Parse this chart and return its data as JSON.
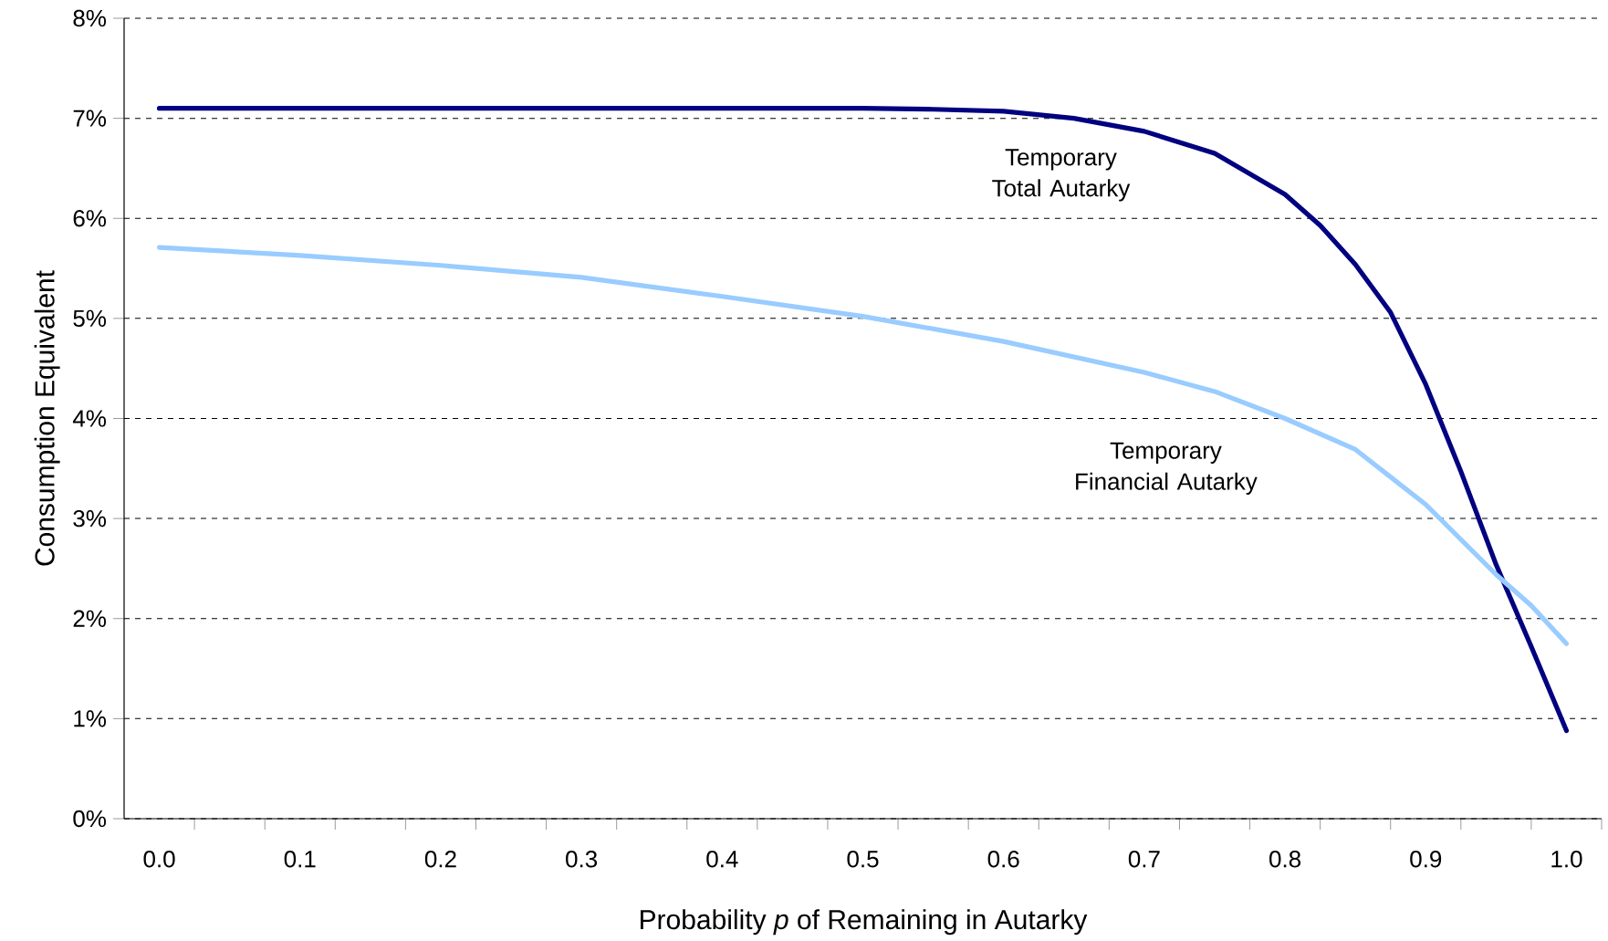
{
  "chart_data": {
    "type": "line",
    "xlabel": "Probability *p* of Remaining in Autarky",
    "ylabel": "Consumption Equivalent",
    "xlim": [
      -0.025,
      1.025
    ],
    "ylim": [
      0,
      8
    ],
    "xticks": [
      {
        "value": 0.0,
        "label": "0.0"
      },
      {
        "value": 0.1,
        "label": "0.1"
      },
      {
        "value": 0.2,
        "label": "0.2"
      },
      {
        "value": 0.3,
        "label": "0.3"
      },
      {
        "value": 0.4,
        "label": "0.4"
      },
      {
        "value": 0.5,
        "label": "0.5"
      },
      {
        "value": 0.6,
        "label": "0.6"
      },
      {
        "value": 0.7,
        "label": "0.7"
      },
      {
        "value": 0.8,
        "label": "0.8"
      },
      {
        "value": 0.9,
        "label": "0.9"
      },
      {
        "value": 1.0,
        "label": "1.0"
      },
      {
        "value": 0.025,
        "label": null
      },
      {
        "value": 0.075,
        "label": null
      },
      {
        "value": 0.125,
        "label": null
      },
      {
        "value": 0.175,
        "label": null
      },
      {
        "value": 0.225,
        "label": null
      },
      {
        "value": 0.275,
        "label": null
      },
      {
        "value": 0.325,
        "label": null
      },
      {
        "value": 0.375,
        "label": null
      },
      {
        "value": 0.425,
        "label": null
      },
      {
        "value": 0.475,
        "label": null
      },
      {
        "value": 0.525,
        "label": null
      },
      {
        "value": 0.575,
        "label": null
      },
      {
        "value": 0.625,
        "label": null
      },
      {
        "value": 0.675,
        "label": null
      },
      {
        "value": 0.725,
        "label": null
      },
      {
        "value": 0.775,
        "label": null
      },
      {
        "value": 0.825,
        "label": null
      },
      {
        "value": 0.875,
        "label": null
      },
      {
        "value": 0.925,
        "label": null
      },
      {
        "value": 0.975,
        "label": null
      },
      {
        "value": 1.025,
        "label": null
      }
    ],
    "yticks": [
      {
        "value": 0,
        "label": "0%"
      },
      {
        "value": 1,
        "label": "1%"
      },
      {
        "value": 2,
        "label": "2%"
      },
      {
        "value": 3,
        "label": "3%"
      },
      {
        "value": 4,
        "label": "4%"
      },
      {
        "value": 5,
        "label": "5%"
      },
      {
        "value": 6,
        "label": "6%"
      },
      {
        "value": 7,
        "label": "7%"
      },
      {
        "value": 8,
        "label": "8%"
      }
    ],
    "grid": "y",
    "line_style": "solid",
    "marker": "none",
    "series": [
      {
        "color": "#000080",
        "x": [
          0.0,
          0.1,
          0.2,
          0.3,
          0.4,
          0.5,
          0.55,
          0.6,
          0.65,
          0.7,
          0.75,
          0.8,
          0.825,
          0.85,
          0.875,
          0.9,
          0.925,
          0.95,
          0.975,
          1.0
        ],
        "values": [
          7.1,
          7.1,
          7.1,
          7.1,
          7.1,
          7.1,
          7.09,
          7.07,
          7.0,
          6.87,
          6.65,
          6.24,
          5.93,
          5.54,
          5.06,
          4.34,
          3.47,
          2.54,
          1.72,
          0.88
        ]
      },
      {
        "color": "#99ccff",
        "x": [
          0.0,
          0.1,
          0.2,
          0.3,
          0.4,
          0.5,
          0.6,
          0.7,
          0.75,
          0.8,
          0.85,
          0.9,
          0.95,
          0.975,
          1.0
        ],
        "values": [
          5.71,
          5.63,
          5.53,
          5.41,
          5.22,
          5.02,
          4.77,
          4.46,
          4.27,
          4.0,
          3.69,
          3.14,
          2.44,
          2.13,
          1.75
        ]
      }
    ],
    "annotations": [
      "Temporary Total Autarky",
      "Temporary Financial Autarky"
    ]
  }
}
